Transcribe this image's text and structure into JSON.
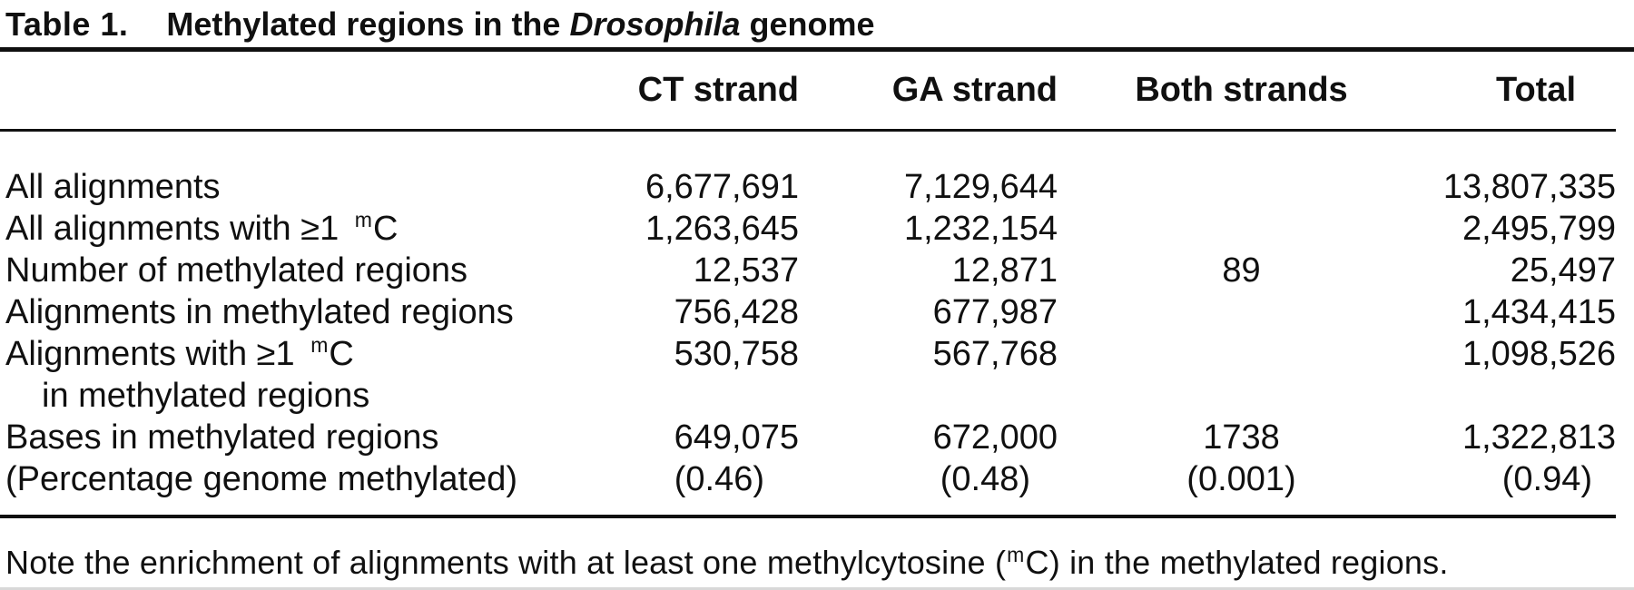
{
  "title": {
    "label": "Table 1.",
    "pre": "Methylated regions in the ",
    "italic": "Drosophila",
    "post": " genome"
  },
  "table": {
    "headers": [
      "",
      "CT strand",
      "GA strand",
      "Both strands",
      "Total"
    ],
    "rows": [
      {
        "label": {
          "pre": "All alignments"
        },
        "values": [
          "6,677,691",
          "7,129,644",
          "",
          "13,807,335"
        ]
      },
      {
        "label": {
          "pre": "All alignments with ≥1 ",
          "sup": "m",
          "post": "C"
        },
        "values": [
          "1,263,645",
          "1,232,154",
          "",
          "2,495,799"
        ]
      },
      {
        "label": {
          "pre": "Number of methylated regions"
        },
        "values": [
          "12,537",
          "12,871",
          "89",
          "25,497"
        ]
      },
      {
        "label": {
          "pre": "Alignments in methylated regions"
        },
        "values": [
          "756,428",
          "677,987",
          "",
          "1,434,415"
        ]
      },
      {
        "label": {
          "pre": "Alignments with ≥1 ",
          "sup": "m",
          "post": "C",
          "line2": "in methylated regions"
        },
        "values": [
          "530,758",
          "567,768",
          "",
          "1,098,526"
        ]
      },
      {
        "label": {
          "pre": "Bases in methylated regions"
        },
        "values": [
          "649,075",
          "672,000",
          "1738",
          "1,322,813"
        ]
      },
      {
        "label": {
          "pre": "(Percentage genome methylated)"
        },
        "values": [
          "(0.46)",
          "(0.48)",
          "(0.001)",
          "(0.94)"
        ]
      }
    ]
  },
  "footnote": {
    "pre": "Note the enrichment of alignments with at least one methylcytosine (",
    "sup": "m",
    "post": "C) in the methylated regions."
  }
}
